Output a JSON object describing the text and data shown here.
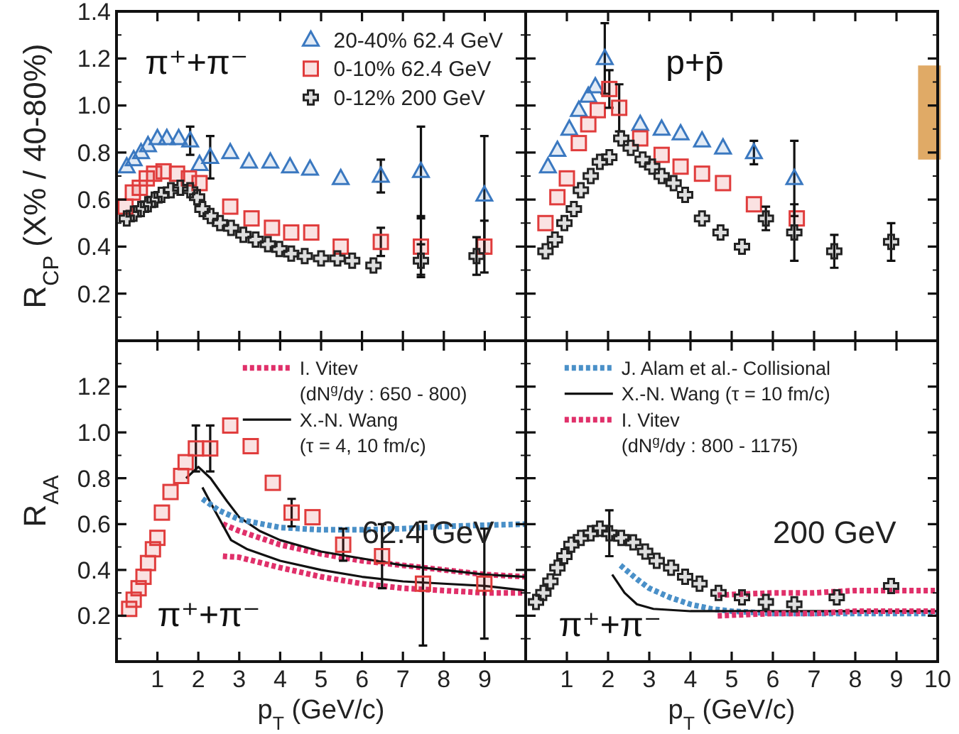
{
  "chart_data": [
    {
      "type": "scatter",
      "title": "π⁺+π⁻",
      "ylabel": "R$_{CP}$ (X% / 40-80%)",
      "xlim": [
        0,
        10
      ],
      "ylim": [
        0,
        1.4
      ],
      "xticks": [
        1,
        2,
        3,
        4,
        5,
        6,
        7,
        8,
        9
      ],
      "yticks": [
        0.2,
        0.4,
        0.6,
        0.8,
        {
          "value": 1,
          "label": "1.0"
        },
        1.2,
        1.4
      ],
      "tick_labels": "y",
      "legend": "top right",
      "series": [
        {
          "name": "20-40% 62.4 GeV",
          "marker": "triangle",
          "color": "#3a78c0",
          "x": [
            0.25,
            0.42,
            0.6,
            0.77,
            1.0,
            1.23,
            1.52,
            1.8,
            2.03,
            2.29,
            2.78,
            3.24,
            3.76,
            4.24,
            4.73,
            5.48,
            6.46,
            7.44,
            8.99
          ],
          "values": [
            0.74,
            0.77,
            0.8,
            0.83,
            0.86,
            0.86,
            0.86,
            0.85,
            0.75,
            0.78,
            0.8,
            0.76,
            0.76,
            0.74,
            0.73,
            0.69,
            0.7,
            0.72,
            0.62
          ],
          "errors": [
            null,
            null,
            null,
            null,
            null,
            null,
            null,
            0.06,
            null,
            0.09,
            null,
            null,
            null,
            null,
            null,
            null,
            0.07,
            0.19,
            0.25
          ]
        },
        {
          "name": "0-10% 62.4 GeV",
          "marker": "square",
          "color": "#e03c3c",
          "x": [
            0.22,
            0.4,
            0.57,
            0.74,
            0.92,
            1.15,
            1.48,
            1.77,
            2.03,
            2.78,
            3.3,
            3.8,
            4.27,
            4.76,
            5.48,
            6.46,
            7.44,
            8.99
          ],
          "values": [
            0.57,
            0.63,
            0.65,
            0.69,
            0.71,
            0.72,
            0.71,
            0.69,
            0.67,
            0.57,
            0.52,
            0.48,
            0.46,
            0.46,
            0.4,
            0.42,
            0.4,
            0.4
          ],
          "errors": [
            null,
            null,
            null,
            null,
            null,
            null,
            null,
            null,
            null,
            null,
            null,
            null,
            null,
            null,
            null,
            0.06,
            0.12,
            0.11
          ]
        },
        {
          "name": "0-12% 200 GeV",
          "marker": "cross",
          "color": "#222222",
          "x": [
            0.25,
            0.42,
            0.6,
            0.77,
            0.93,
            1.1,
            1.33,
            1.56,
            1.8,
            1.97,
            2.1,
            2.3,
            2.53,
            2.8,
            3.1,
            3.4,
            3.7,
            3.98,
            4.27,
            4.6,
            5.0,
            5.4,
            5.76,
            6.28,
            7.44,
            8.8
          ],
          "values": [
            0.52,
            0.54,
            0.56,
            0.58,
            0.6,
            0.62,
            0.64,
            0.65,
            0.64,
            0.61,
            0.56,
            0.53,
            0.5,
            0.48,
            0.45,
            0.43,
            0.41,
            0.39,
            0.37,
            0.36,
            0.35,
            0.35,
            0.34,
            0.32,
            0.34,
            0.36
          ],
          "errors": [
            null,
            null,
            null,
            null,
            null,
            null,
            null,
            null,
            null,
            null,
            null,
            null,
            null,
            null,
            null,
            null,
            null,
            null,
            null,
            null,
            null,
            null,
            null,
            null,
            0.07,
            0.08
          ]
        }
      ]
    },
    {
      "type": "scatter",
      "title": "p+p̄",
      "xlim": [
        0,
        10
      ],
      "ylim": [
        0,
        1.4
      ],
      "xticks": [
        1,
        2,
        3,
        4,
        5,
        6,
        7,
        8,
        9,
        10
      ],
      "yticks": [
        0.2,
        0.4,
        0.6,
        0.8,
        1,
        1.2,
        1.4
      ],
      "tick_labels": false,
      "series": [
        {
          "marker": "triangle",
          "color": "#3a78c0",
          "x": [
            0.54,
            0.77,
            1.06,
            1.29,
            1.52,
            1.69,
            1.92,
            2.78,
            3.3,
            3.76,
            4.28,
            4.79,
            5.54,
            6.52
          ],
          "values": [
            0.74,
            0.81,
            0.9,
            0.98,
            1.04,
            1.08,
            1.2,
            0.92,
            0.9,
            0.88,
            0.85,
            0.82,
            0.8,
            0.69
          ],
          "errors": [
            null,
            null,
            null,
            null,
            null,
            null,
            0.15,
            null,
            null,
            null,
            null,
            null,
            0.05,
            0.16
          ]
        },
        {
          "marker": "square",
          "color": "#e03c3c",
          "x": [
            0.48,
            0.77,
            1.0,
            1.29,
            1.52,
            1.75,
            2.03,
            2.27,
            2.78,
            3.3,
            3.76,
            4.28,
            4.79,
            5.54,
            6.58
          ],
          "values": [
            0.5,
            0.61,
            0.69,
            0.84,
            0.92,
            0.98,
            1.07,
            0.99,
            0.86,
            0.79,
            0.74,
            0.71,
            0.67,
            0.58,
            0.52
          ],
          "errors": [
            null,
            null,
            null,
            null,
            null,
            null,
            0.08,
            0.1,
            null,
            null,
            null,
            null,
            null,
            null,
            null
          ]
        },
        {
          "marker": "cross",
          "color": "#222222",
          "x": [
            0.48,
            0.71,
            0.94,
            1.17,
            1.34,
            1.58,
            1.8,
            2.03,
            2.32,
            2.55,
            2.84,
            3.07,
            3.3,
            3.59,
            3.87,
            4.28,
            4.73,
            5.25,
            5.83,
            6.52,
            7.49,
            8.87
          ],
          "values": [
            0.38,
            0.43,
            0.5,
            0.56,
            0.64,
            0.7,
            0.76,
            0.78,
            0.86,
            0.82,
            0.77,
            0.74,
            0.7,
            0.67,
            0.62,
            0.52,
            0.46,
            0.4,
            0.52,
            0.46,
            0.38,
            0.42
          ],
          "errors": [
            null,
            null,
            null,
            null,
            null,
            null,
            null,
            null,
            null,
            null,
            null,
            null,
            null,
            null,
            null,
            null,
            null,
            null,
            0.05,
            0.12,
            0.07,
            0.08
          ]
        },
        {
          "type": "bar",
          "color": "#e0aa66",
          "x": [
            9.8
          ],
          "base": [
            0.77
          ],
          "values": [
            0.4
          ]
        }
      ]
    },
    {
      "type": "scatter",
      "title": "π⁺+π⁻",
      "annotations": [
        "62.4 GeV"
      ],
      "xlabel": "p$_{T}$ (GeV/c)",
      "ylabel": "R$_{AA}$",
      "xlim": [
        0,
        10
      ],
      "ylim": [
        0,
        1.4
      ],
      "xticks": [
        1,
        2,
        3,
        4,
        5,
        6,
        7,
        8,
        9
      ],
      "yticks": [
        0.2,
        0.4,
        0.6,
        0.8,
        {
          "value": 1,
          "label": "1.0"
        },
        1.2
      ],
      "legend": "top right",
      "series": [
        {
          "name": "I. Vitev (dN$^{g}$/dy : 650 - 800)",
          "type": "line",
          "line_style": "dotted",
          "color": "#e0306a",
          "x": [
            2.6,
            3,
            4,
            5,
            6,
            7,
            8,
            9,
            10
          ],
          "values": [
            0.6,
            0.57,
            0.51,
            0.47,
            0.44,
            0.42,
            0.4,
            0.38,
            0.37
          ]
        },
        {
          "type": "line",
          "line_style": "dotted",
          "color": "#e0306a",
          "x": [
            2.6,
            3,
            4,
            5,
            6,
            7,
            8,
            9,
            10
          ],
          "values": [
            0.46,
            0.455,
            0.41,
            0.37,
            0.34,
            0.32,
            0.31,
            0.3,
            0.3
          ]
        },
        {
          "name": "X.-N. Wang (τ = 4, 10 fm/c)",
          "type": "line",
          "line_style": "solid",
          "color": "#111111",
          "x": [
            1.7,
            2.0,
            2.3,
            2.7,
            3,
            3.5,
            4,
            5,
            6,
            7,
            8,
            9,
            10
          ],
          "values": [
            0.8,
            0.85,
            0.8,
            0.7,
            0.63,
            0.57,
            0.53,
            0.48,
            0.45,
            0.42,
            0.4,
            0.38,
            0.37
          ]
        },
        {
          "type": "line",
          "line_style": "solid",
          "color": "#111111",
          "x": [
            2.1,
            2.4,
            2.8,
            3.2,
            4,
            5,
            6,
            7,
            8,
            9,
            10
          ],
          "values": [
            0.76,
            0.66,
            0.53,
            0.49,
            0.44,
            0.4,
            0.37,
            0.35,
            0.34,
            0.33,
            0.31
          ]
        },
        {
          "type": "line",
          "line_style": "dotted",
          "color": "#4a90c8",
          "x": [
            2.1,
            2.5,
            3,
            4,
            5,
            6,
            7,
            8,
            9,
            10
          ],
          "values": [
            0.71,
            0.66,
            0.62,
            0.585,
            0.575,
            0.575,
            0.58,
            0.59,
            0.595,
            0.6
          ]
        },
        {
          "marker": "square",
          "color": "#e03c3c",
          "x": [
            0.31,
            0.42,
            0.54,
            0.66,
            0.77,
            0.89,
            1.0,
            1.11,
            1.32,
            1.58,
            1.69,
            1.94,
            2.29,
            2.78,
            3.28,
            3.82,
            4.28,
            4.79,
            5.54,
            6.49,
            7.49,
            8.99
          ],
          "values": [
            0.23,
            0.27,
            0.32,
            0.37,
            0.43,
            0.49,
            0.54,
            0.65,
            0.74,
            0.81,
            0.87,
            0.93,
            0.93,
            1.03,
            0.94,
            0.78,
            0.65,
            0.63,
            0.51,
            0.46,
            0.34,
            0.34
          ],
          "errors": [
            null,
            null,
            null,
            null,
            null,
            null,
            null,
            null,
            null,
            null,
            null,
            0.1,
            0.1,
            null,
            null,
            null,
            0.06,
            null,
            0.07,
            0.14,
            0.27,
            0.24
          ]
        }
      ]
    },
    {
      "type": "scatter",
      "title": "π⁺+π⁻",
      "annotations": [
        "200 GeV"
      ],
      "xlabel": "p$_{T}$ (GeV/c)",
      "xlim": [
        0,
        10
      ],
      "ylim": [
        0,
        1.4
      ],
      "xticks": [
        1,
        2,
        3,
        4,
        5,
        6,
        7,
        8,
        9,
        10
      ],
      "yticks": [
        0.2,
        0.4,
        0.6,
        0.8,
        1,
        1.2
      ],
      "tick_labels": "x",
      "legend": "top",
      "series": [
        {
          "name": "J. Alam et al.- Collisional",
          "type": "line",
          "line_style": "dotted",
          "color": "#4a90c8",
          "x": [
            2.3,
            2.7,
            3,
            3.5,
            4,
            4.5,
            5,
            6,
            7,
            8,
            9,
            10
          ],
          "values": [
            0.42,
            0.36,
            0.32,
            0.28,
            0.25,
            0.23,
            0.22,
            0.21,
            0.21,
            0.21,
            0.21,
            0.21
          ]
        },
        {
          "name": "X.-N. Wang (τ = 10 fm/c)",
          "type": "line",
          "line_style": "solid",
          "color": "#111111",
          "x": [
            2.1,
            2.4,
            2.7,
            3.1,
            4,
            10
          ],
          "values": [
            0.38,
            0.3,
            0.25,
            0.23,
            0.22,
            0.22
          ]
        },
        {
          "name": "I. Vitev (dN$^{g}$/dy : 800 - 1175)",
          "type": "line",
          "line_style": "dotted",
          "color": "#e0306a",
          "x": [
            4.66,
            6,
            7,
            8,
            9,
            10
          ],
          "values": [
            0.29,
            0.3,
            0.3,
            0.31,
            0.31,
            0.31
          ]
        },
        {
          "type": "line",
          "line_style": "dotted",
          "color": "#e0306a",
          "x": [
            4.66,
            6,
            7,
            8,
            9,
            10
          ],
          "values": [
            0.2,
            0.21,
            0.21,
            0.22,
            0.22,
            0.22
          ]
        },
        {
          "marker": "cross",
          "color": "#222222",
          "x": [
            0.25,
            0.43,
            0.6,
            0.77,
            0.94,
            1.11,
            1.34,
            1.58,
            1.8,
            2.03,
            2.32,
            2.61,
            2.9,
            3.18,
            3.53,
            3.87,
            4.22,
            4.68,
            5.25,
            5.83,
            6.52,
            7.55,
            8.87
          ],
          "values": [
            0.26,
            0.3,
            0.35,
            0.41,
            0.46,
            0.51,
            0.54,
            0.56,
            0.58,
            0.56,
            0.54,
            0.52,
            0.48,
            0.44,
            0.41,
            0.37,
            0.34,
            0.3,
            0.28,
            0.26,
            0.25,
            0.28,
            0.33
          ],
          "errors": [
            null,
            null,
            null,
            null,
            null,
            null,
            null,
            null,
            null,
            0.1,
            null,
            null,
            null,
            null,
            null,
            null,
            null,
            null,
            null,
            null,
            null,
            null,
            null
          ]
        }
      ]
    }
  ]
}
